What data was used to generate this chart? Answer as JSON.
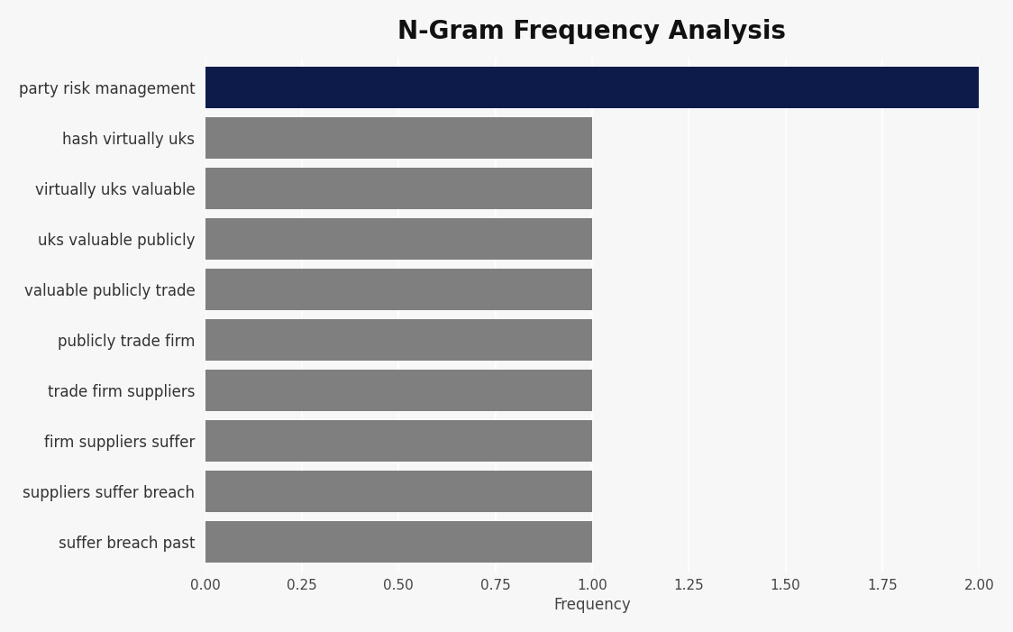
{
  "title": "N-Gram Frequency Analysis",
  "categories": [
    "suffer breach past",
    "suppliers suffer breach",
    "firm suppliers suffer",
    "trade firm suppliers",
    "publicly trade firm",
    "valuable publicly trade",
    "uks valuable publicly",
    "virtually uks valuable",
    "hash virtually uks",
    "party risk management"
  ],
  "values": [
    1,
    1,
    1,
    1,
    1,
    1,
    1,
    1,
    1,
    2
  ],
  "bar_colors": [
    "#7f7f7f",
    "#7f7f7f",
    "#7f7f7f",
    "#7f7f7f",
    "#7f7f7f",
    "#7f7f7f",
    "#7f7f7f",
    "#7f7f7f",
    "#7f7f7f",
    "#0d1b4b"
  ],
  "background_color": "#f7f7f7",
  "plot_bg_color": "#f7f7f7",
  "xlabel": "Frequency",
  "xlim": [
    0,
    2.0
  ],
  "xticks": [
    0.0,
    0.25,
    0.5,
    0.75,
    1.0,
    1.25,
    1.5,
    1.75,
    2.0
  ],
  "xtick_labels": [
    "0.00",
    "0.25",
    "0.50",
    "0.75",
    "1.00",
    "1.25",
    "1.50",
    "1.75",
    "2.00"
  ],
  "title_fontsize": 20,
  "label_fontsize": 12,
  "tick_fontsize": 11,
  "bar_height": 0.82
}
